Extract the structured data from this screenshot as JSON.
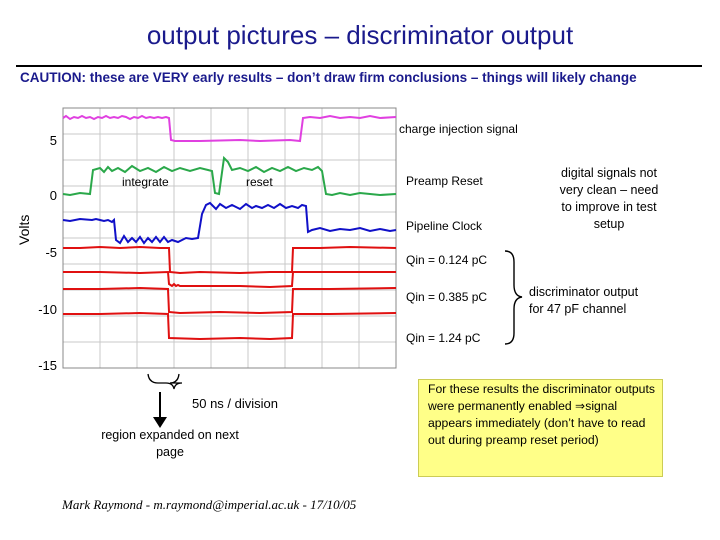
{
  "title": "output pictures – discriminator output",
  "caution": "CAUTION: these are VERY early results – don’t draw firm conclusions – things will likely change",
  "plot": {
    "y_axis_label": "Volts",
    "y_ticks": [
      "5",
      "0",
      "-5",
      "-10",
      "-15"
    ],
    "time_scale": "50 ns / division",
    "trace_colors": {
      "charge_injection": "#e040e0",
      "reset": "#2aa84a",
      "preamp_reset": "#1010c8",
      "discriminator": "#e01010"
    }
  },
  "annotations": {
    "charge_injection": "charge injection signal",
    "integrate": "integrate",
    "reset": "reset",
    "preamp_reset": "Preamp Reset",
    "pipeline_clock": "Pipeline Clock",
    "digital_note": "digital signals not very clean – need to improve in test setup",
    "qin_1": "Qin = 0.124 pC",
    "qin_2": "Qin = 0.385 pC",
    "qin_3": "Qin = 1.24 pC",
    "discriminator_note": "discriminator output for 47 pF channel",
    "region_expanded": "region expanded on next page"
  },
  "note_box": "For these results the discriminator outputs were permanently enabled ⇒signal appears immediately (don’t have to read out during preamp reset period)",
  "author": "Mark Raymond - m.raymond@imperial.ac.uk - 17/10/05"
}
